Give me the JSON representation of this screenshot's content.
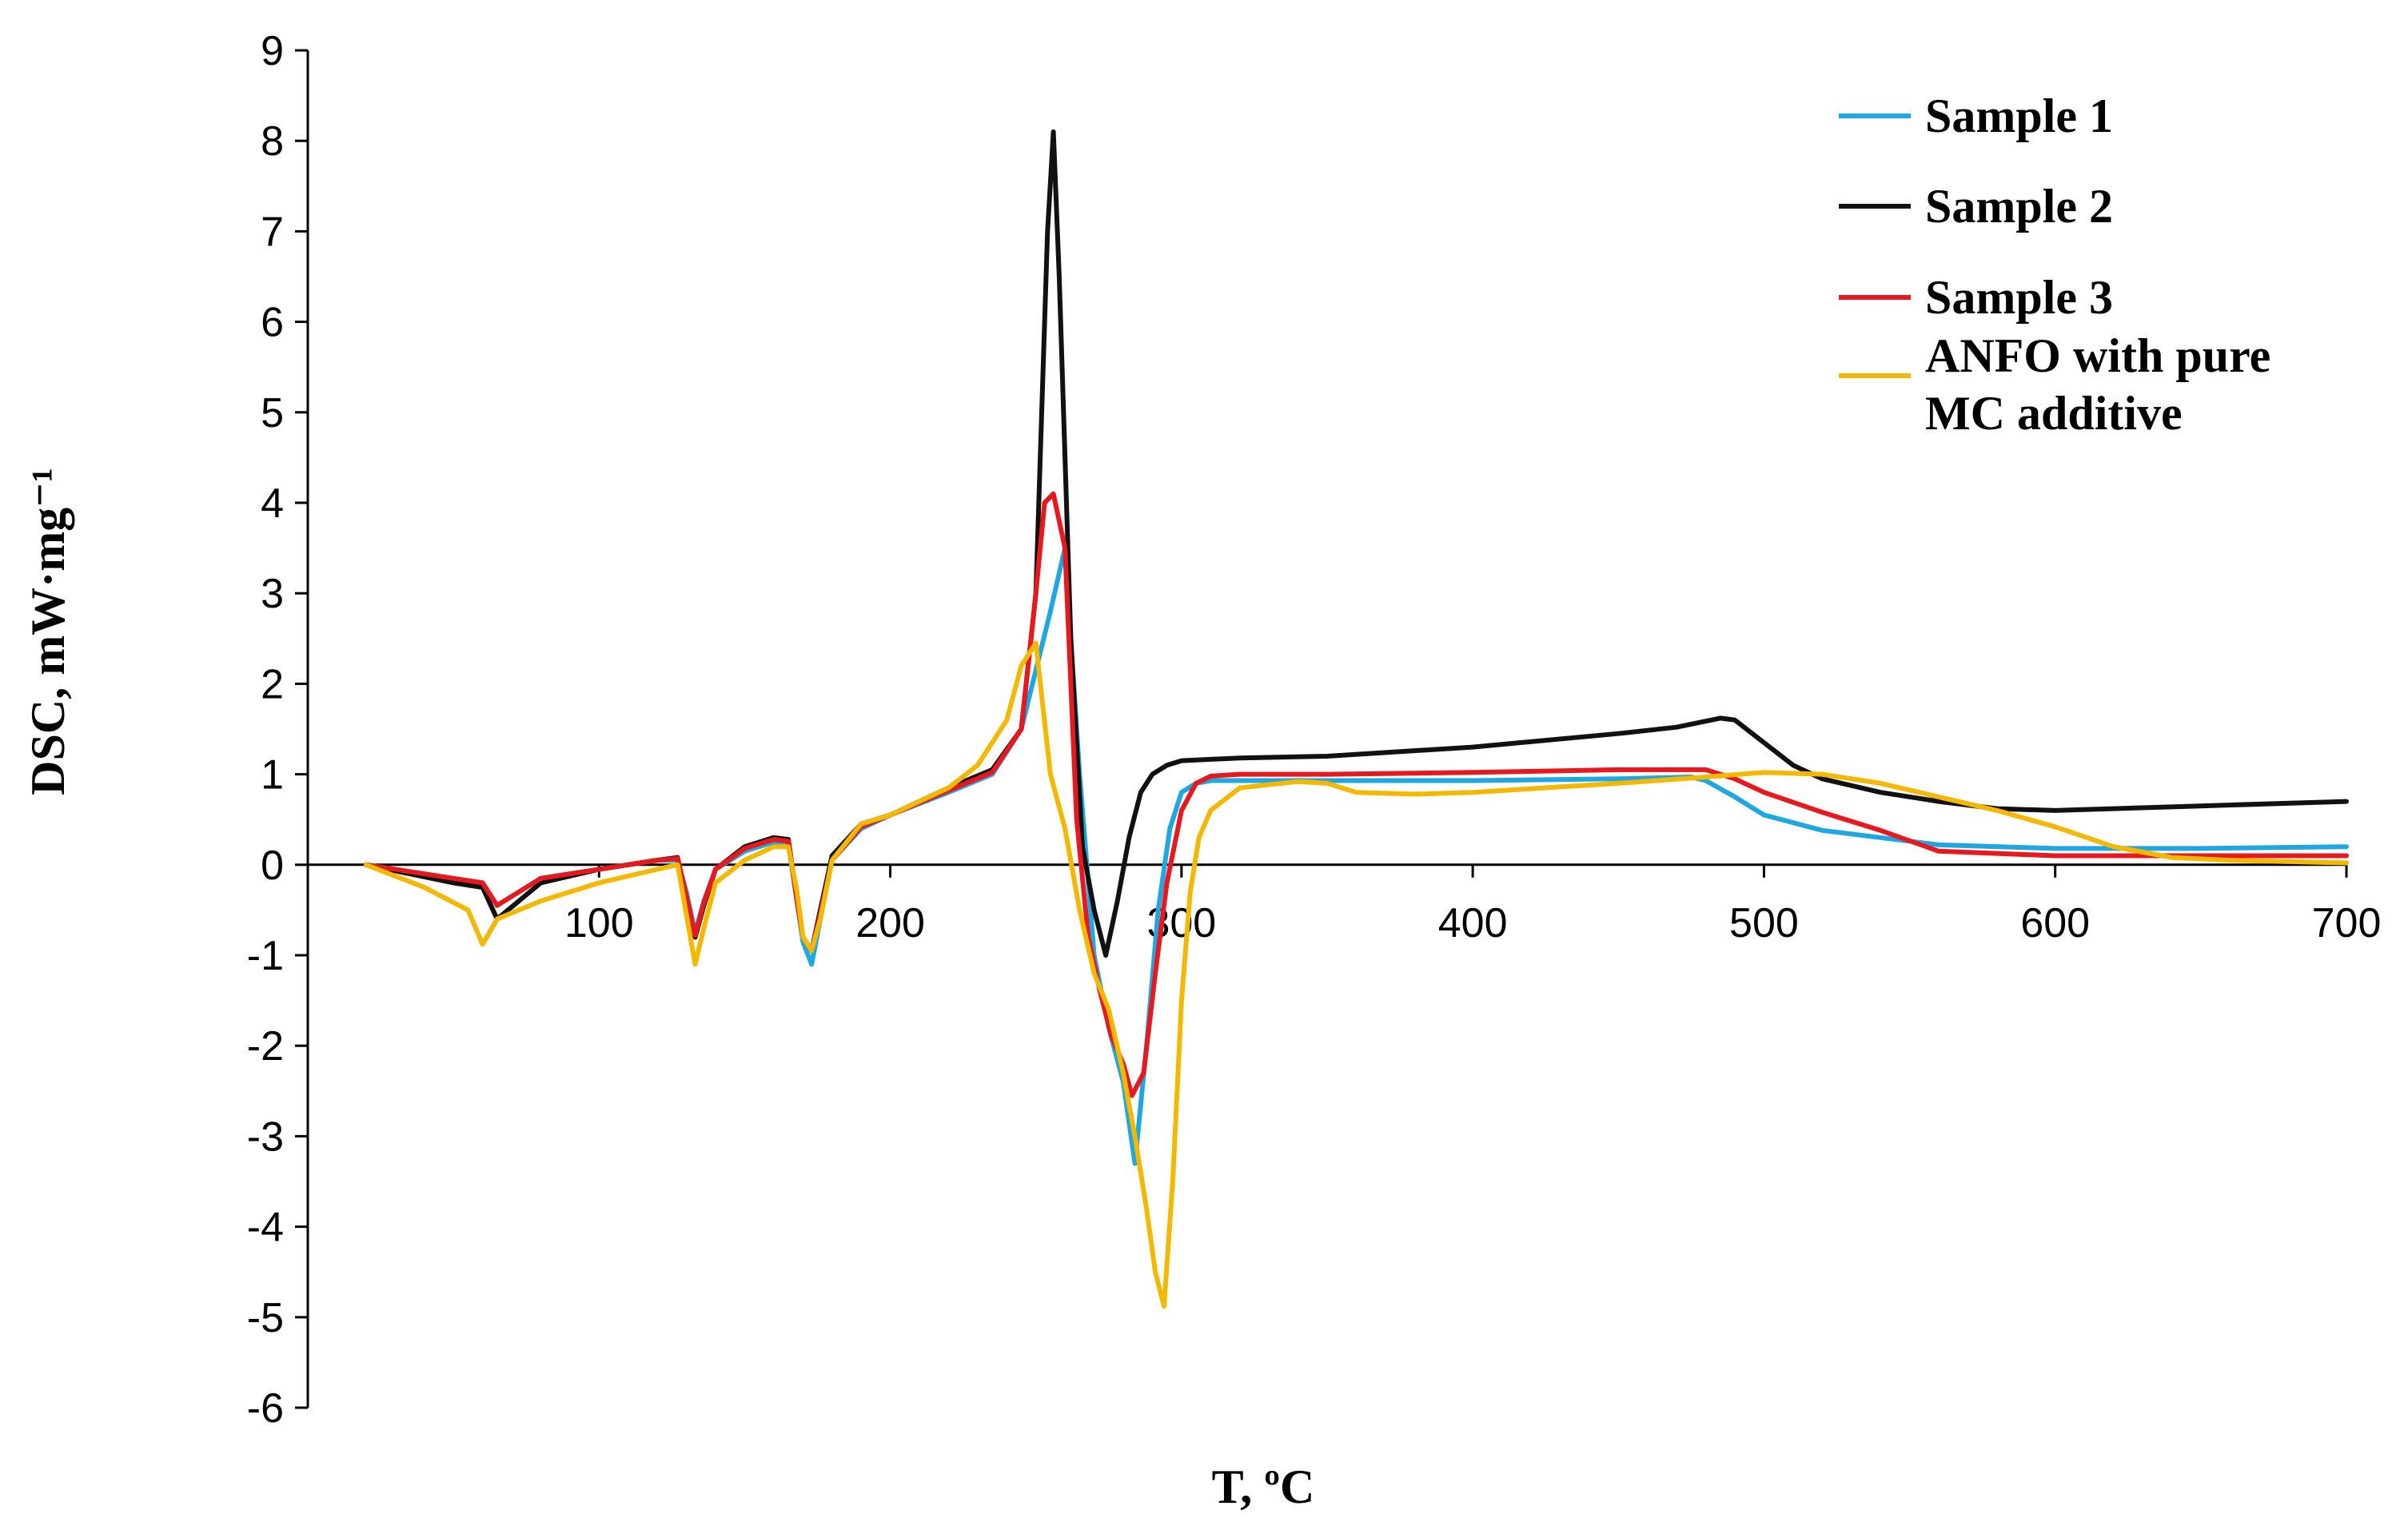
{
  "chart_data": {
    "type": "line",
    "title": "",
    "xlabel": "T, ºC",
    "ylabel": "DSC, mW·mg⁻¹",
    "xlim": [
      0,
      700
    ],
    "ylim": [
      -6,
      9
    ],
    "xticks": [
      100,
      200,
      300,
      400,
      500,
      600,
      700
    ],
    "yticks": [
      9,
      8,
      7,
      6,
      5,
      4,
      3,
      2,
      1,
      0,
      -1,
      -2,
      -3,
      -4,
      -5,
      -6
    ],
    "grid": false,
    "legend_position": "top-right",
    "series": [
      {
        "name": "Sample 1",
        "color": "#1ea7e1",
        "x": [
          20,
          50,
          60,
          65,
          80,
          100,
          120,
          127,
          130,
          133,
          136,
          140,
          150,
          160,
          165,
          168,
          170,
          173,
          176,
          180,
          190,
          200,
          220,
          235,
          245,
          255,
          260,
          265,
          270,
          275,
          280,
          284,
          288,
          292,
          296,
          300,
          305,
          310,
          320,
          350,
          400,
          450,
          475,
          480,
          490,
          500,
          520,
          560,
          600,
          650,
          700
        ],
        "y": [
          0,
          -0.15,
          -0.2,
          -0.45,
          -0.15,
          -0.05,
          0.05,
          0.05,
          -0.3,
          -0.75,
          -0.4,
          -0.05,
          0.15,
          0.25,
          0.22,
          -0.4,
          -0.85,
          -1.1,
          -0.6,
          0.05,
          0.4,
          0.55,
          0.8,
          1.0,
          1.5,
          2.8,
          3.5,
          1.0,
          -1.0,
          -1.8,
          -2.4,
          -3.3,
          -2.0,
          -0.5,
          0.4,
          0.8,
          0.9,
          0.93,
          0.93,
          0.93,
          0.93,
          0.95,
          0.97,
          0.93,
          0.75,
          0.55,
          0.38,
          0.22,
          0.18,
          0.18,
          0.2
        ]
      },
      {
        "name": "Sample 2",
        "color": "#111111",
        "x": [
          20,
          50,
          60,
          65,
          80,
          100,
          120,
          127,
          130,
          133,
          136,
          140,
          150,
          160,
          165,
          168,
          170,
          173,
          176,
          180,
          190,
          200,
          220,
          235,
          245,
          250,
          254,
          256,
          258,
          262,
          266,
          270,
          274,
          278,
          282,
          286,
          290,
          295,
          300,
          320,
          350,
          400,
          450,
          470,
          485,
          490,
          500,
          510,
          520,
          540,
          560,
          580,
          600,
          650,
          700
        ],
        "y": [
          0,
          -0.2,
          -0.25,
          -0.6,
          -0.2,
          -0.05,
          0.05,
          0.08,
          -0.4,
          -0.8,
          -0.45,
          -0.05,
          0.2,
          0.3,
          0.28,
          -0.4,
          -0.8,
          -0.95,
          -0.5,
          0.1,
          0.45,
          0.55,
          0.85,
          1.05,
          1.5,
          3.0,
          7.0,
          8.1,
          6.5,
          2.5,
          0.2,
          -0.5,
          -1.0,
          -0.4,
          0.3,
          0.8,
          1.0,
          1.1,
          1.15,
          1.18,
          1.2,
          1.3,
          1.45,
          1.52,
          1.62,
          1.6,
          1.35,
          1.1,
          0.95,
          0.8,
          0.7,
          0.62,
          0.6,
          0.65,
          0.7
        ]
      },
      {
        "name": "Sample 3",
        "color": "#e8191e",
        "x": [
          20,
          50,
          60,
          65,
          80,
          100,
          120,
          127,
          130,
          133,
          136,
          140,
          150,
          160,
          165,
          168,
          170,
          173,
          176,
          180,
          190,
          200,
          220,
          235,
          245,
          250,
          253,
          256,
          260,
          264,
          268,
          272,
          276,
          280,
          283,
          287,
          291,
          295,
          300,
          305,
          310,
          320,
          350,
          400,
          450,
          480,
          490,
          500,
          520,
          540,
          560,
          600,
          650,
          700
        ],
        "y": [
          0,
          -0.15,
          -0.2,
          -0.45,
          -0.15,
          -0.05,
          0.05,
          0.07,
          -0.35,
          -0.78,
          -0.42,
          -0.05,
          0.18,
          0.28,
          0.26,
          -0.4,
          -0.8,
          -0.95,
          -0.55,
          0.05,
          0.42,
          0.55,
          0.82,
          1.02,
          1.5,
          3.0,
          4.0,
          4.1,
          3.5,
          0.5,
          -0.8,
          -1.4,
          -1.9,
          -2.2,
          -2.55,
          -2.3,
          -1.2,
          -0.2,
          0.6,
          0.9,
          0.98,
          1.0,
          1.0,
          1.02,
          1.05,
          1.05,
          0.95,
          0.8,
          0.58,
          0.38,
          0.15,
          0.1,
          0.1,
          0.1
        ]
      },
      {
        "name": "ANFO with pure MC additive",
        "color": "#f5b800",
        "x": [
          20,
          40,
          55,
          60,
          65,
          80,
          100,
          120,
          127,
          130,
          133,
          136,
          140,
          150,
          160,
          165,
          168,
          170,
          173,
          176,
          180,
          190,
          200,
          220,
          230,
          240,
          245,
          250,
          255,
          260,
          265,
          270,
          275,
          280,
          284,
          288,
          291,
          294,
          297,
          300,
          303,
          306,
          310,
          320,
          340,
          350,
          360,
          380,
          400,
          450,
          480,
          500,
          520,
          540,
          560,
          580,
          600,
          620,
          640,
          660,
          700
        ],
        "y": [
          0,
          -0.25,
          -0.5,
          -0.88,
          -0.6,
          -0.4,
          -0.2,
          -0.05,
          0.0,
          -0.55,
          -1.1,
          -0.7,
          -0.2,
          0.05,
          0.2,
          0.2,
          -0.3,
          -0.8,
          -0.95,
          -0.6,
          0.05,
          0.45,
          0.55,
          0.85,
          1.1,
          1.6,
          2.2,
          2.45,
          1.0,
          0.4,
          -0.5,
          -1.2,
          -1.6,
          -2.3,
          -3.0,
          -3.8,
          -4.5,
          -4.88,
          -3.5,
          -1.5,
          -0.3,
          0.3,
          0.6,
          0.85,
          0.92,
          0.9,
          0.8,
          0.78,
          0.8,
          0.9,
          0.97,
          1.02,
          1.0,
          0.9,
          0.75,
          0.6,
          0.42,
          0.2,
          0.08,
          0.05,
          0.02
        ]
      }
    ]
  }
}
